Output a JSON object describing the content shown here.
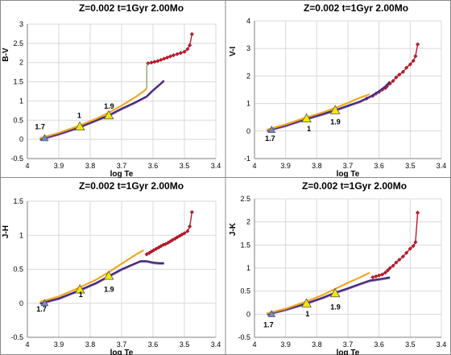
{
  "figure": {
    "title": "Z=0.002  t=1Gyr  2.00Mo"
  },
  "colors": {
    "red": "#c0192b",
    "dark": "#3a2a7a",
    "purple": "#7d3c98",
    "orange": "#f5a623",
    "yellow": "#f2e600",
    "blue": "#6a8fd0",
    "green": "#7d9a4c",
    "grid": "#d9d9d9"
  },
  "chart_data": [
    {
      "type": "line",
      "title": "Z=0.002  t=1Gyr  2.00Mo",
      "xlabel": "log Te",
      "ylabel": "B-V",
      "xlim": [
        4.0,
        3.4
      ],
      "ylim": [
        -0.5,
        3.0
      ],
      "xticks": [
        "4",
        "3.9",
        "3.8",
        "3.7",
        "3.6",
        "3.5",
        "3.4"
      ],
      "yticks": [
        "-0.5",
        "0",
        "0.5",
        "1",
        "1.5",
        "2",
        "2.5",
        "3"
      ],
      "grid": true,
      "series": [
        {
          "style": "red",
          "x": [
            3.616,
            3.605,
            3.595,
            3.585,
            3.575,
            3.565,
            3.555,
            3.545,
            3.535,
            3.523,
            3.512,
            3.5,
            3.49,
            3.483,
            3.476
          ],
          "y": [
            1.98,
            2.0,
            2.02,
            2.04,
            2.07,
            2.1,
            2.13,
            2.16,
            2.19,
            2.22,
            2.25,
            2.28,
            2.35,
            2.45,
            2.74
          ]
        },
        {
          "style": "dark",
          "x": [
            3.96,
            3.9,
            3.84,
            3.78,
            3.74,
            3.7,
            3.66,
            3.62,
            3.6,
            3.58,
            3.565
          ],
          "y": [
            0.0,
            0.14,
            0.3,
            0.5,
            0.63,
            0.8,
            0.95,
            1.12,
            1.28,
            1.42,
            1.53
          ]
        },
        {
          "style": "orange",
          "x": [
            3.96,
            3.9,
            3.84,
            3.78,
            3.74,
            3.7,
            3.66,
            3.63,
            3.62
          ],
          "y": [
            0.03,
            0.17,
            0.34,
            0.54,
            0.7,
            0.88,
            1.08,
            1.25,
            1.32
          ]
        },
        {
          "style": "green",
          "x": [
            3.62,
            3.62,
            3.616
          ],
          "y": [
            1.32,
            1.9,
            1.98
          ]
        }
      ],
      "markers": [
        {
          "shape": "triangle",
          "color": "yellow",
          "x": 3.833,
          "y": 0.33
        },
        {
          "shape": "triangle",
          "color": "yellow",
          "x": 3.741,
          "y": 0.62
        },
        {
          "shape": "triangle",
          "color": "blue",
          "x": 3.945,
          "y": 0.03
        }
      ],
      "annotations": [
        {
          "text": "1.7",
          "x": 3.96,
          "y": 0.27
        },
        {
          "text": "1",
          "x": 3.835,
          "y": 0.56
        },
        {
          "text": "1.9",
          "x": 3.74,
          "y": 0.8
        }
      ]
    },
    {
      "type": "line",
      "title": "Z=0.002  t=1Gyr  2.00Mo",
      "xlabel": "log Te",
      "ylabel": "V-I",
      "xlim": [
        4.0,
        3.4
      ],
      "ylim": [
        -1.0,
        4.0
      ],
      "xticks": [
        "4",
        "3.9",
        "3.8",
        "3.7",
        "3.6",
        "3.5",
        "3.4"
      ],
      "yticks": [
        "-1",
        "0",
        "1",
        "2",
        "3",
        "4"
      ],
      "grid": true,
      "series": [
        {
          "style": "red",
          "x": [
            3.64,
            3.62,
            3.61,
            3.6,
            3.59,
            3.58,
            3.575,
            3.565,
            3.555,
            3.545,
            3.535,
            3.523,
            3.512,
            3.5,
            3.49,
            3.483,
            3.476
          ],
          "y": [
            1.18,
            1.28,
            1.36,
            1.42,
            1.5,
            1.56,
            1.62,
            1.72,
            1.82,
            1.95,
            2.05,
            2.15,
            2.3,
            2.42,
            2.55,
            2.72,
            3.15
          ]
        },
        {
          "style": "dark",
          "x": [
            3.96,
            3.9,
            3.84,
            3.78,
            3.74,
            3.7,
            3.66,
            3.62,
            3.6,
            3.58,
            3.565
          ],
          "y": [
            0.02,
            0.2,
            0.42,
            0.62,
            0.76,
            0.92,
            1.08,
            1.3,
            1.45,
            1.62,
            1.8
          ]
        },
        {
          "style": "orange",
          "x": [
            3.96,
            3.9,
            3.84,
            3.78,
            3.74,
            3.7,
            3.66,
            3.63
          ],
          "y": [
            0.05,
            0.24,
            0.47,
            0.68,
            0.84,
            1.02,
            1.22,
            1.34
          ]
        }
      ],
      "markers": [
        {
          "shape": "triangle",
          "color": "yellow",
          "x": 3.833,
          "y": 0.45
        },
        {
          "shape": "triangle",
          "color": "yellow",
          "x": 3.741,
          "y": 0.75
        },
        {
          "shape": "triangle",
          "color": "blue",
          "x": 3.945,
          "y": 0.04
        }
      ],
      "annotations": [
        {
          "text": "1.7",
          "x": 3.95,
          "y": -0.35
        },
        {
          "text": "1",
          "x": 3.825,
          "y": 0.0
        },
        {
          "text": "1.9",
          "x": 3.74,
          "y": 0.25
        }
      ]
    },
    {
      "type": "line",
      "title": "Z=0.002  t=1Gyr  2.00Mo",
      "xlabel": "log Te",
      "ylabel": "J-H",
      "xlim": [
        4.0,
        3.4
      ],
      "ylim": [
        -0.5,
        1.5
      ],
      "xticks": [
        "4",
        "3.9",
        "3.8",
        "3.7",
        "3.6",
        "3.5",
        "3.4"
      ],
      "yticks": [
        "-0.5",
        "0",
        "0.5",
        "1",
        "1.5"
      ],
      "grid": true,
      "series": [
        {
          "style": "red",
          "x": [
            3.62,
            3.612,
            3.605,
            3.598,
            3.59,
            3.582,
            3.575,
            3.567,
            3.56,
            3.552,
            3.545,
            3.538,
            3.53,
            3.523,
            3.515,
            3.508,
            3.5,
            3.49,
            3.483,
            3.476
          ],
          "y": [
            0.72,
            0.74,
            0.76,
            0.78,
            0.8,
            0.82,
            0.84,
            0.86,
            0.87,
            0.89,
            0.91,
            0.93,
            0.95,
            0.97,
            0.99,
            1.01,
            1.03,
            1.06,
            1.13,
            1.34
          ]
        },
        {
          "style": "dark",
          "x": [
            3.96,
            3.9,
            3.84,
            3.78,
            3.74,
            3.7,
            3.66,
            3.64,
            3.62,
            3.6,
            3.58,
            3.565
          ],
          "y": [
            0.0,
            0.07,
            0.18,
            0.3,
            0.4,
            0.5,
            0.58,
            0.62,
            0.62,
            0.6,
            0.59,
            0.59
          ]
        },
        {
          "style": "orange",
          "x": [
            3.96,
            3.9,
            3.84,
            3.78,
            3.74,
            3.7,
            3.66,
            3.63
          ],
          "y": [
            0.02,
            0.1,
            0.22,
            0.35,
            0.46,
            0.58,
            0.7,
            0.78
          ]
        }
      ],
      "markers": [
        {
          "shape": "triangle",
          "color": "yellow",
          "x": 3.833,
          "y": 0.2
        },
        {
          "shape": "triangle",
          "color": "yellow",
          "x": 3.741,
          "y": 0.4
        },
        {
          "shape": "triangle",
          "color": "blue",
          "x": 3.945,
          "y": 0.0
        }
      ],
      "annotations": [
        {
          "text": "1.7",
          "x": 3.955,
          "y": -0.12
        },
        {
          "text": "1",
          "x": 3.83,
          "y": 0.09
        },
        {
          "text": "1.9",
          "x": 3.74,
          "y": 0.17
        }
      ]
    },
    {
      "type": "line",
      "title": "Z=0.002  t=1Gyr  2.00Mo",
      "xlabel": "log Te",
      "ylabel": "J-K",
      "xlim": [
        4.0,
        3.4
      ],
      "ylim": [
        -0.5,
        2.5
      ],
      "xticks": [
        "4",
        "3.9",
        "3.8",
        "3.7",
        "3.6",
        "3.5",
        "3.4"
      ],
      "yticks": [
        "-0.5",
        "0",
        "0.5",
        "1",
        "1.5",
        "2",
        "2.5"
      ],
      "grid": true,
      "series": [
        {
          "style": "red",
          "x": [
            3.62,
            3.61,
            3.6,
            3.59,
            3.58,
            3.572,
            3.565,
            3.555,
            3.545,
            3.535,
            3.523,
            3.512,
            3.5,
            3.49,
            3.483,
            3.476
          ],
          "y": [
            0.8,
            0.82,
            0.84,
            0.86,
            0.9,
            0.95,
            1.0,
            1.05,
            1.12,
            1.18,
            1.25,
            1.33,
            1.42,
            1.48,
            1.56,
            2.2
          ]
        },
        {
          "style": "dark",
          "x": [
            3.96,
            3.9,
            3.84,
            3.78,
            3.74,
            3.7,
            3.66,
            3.63,
            3.6,
            3.58,
            3.565
          ],
          "y": [
            0.0,
            0.1,
            0.22,
            0.36,
            0.47,
            0.56,
            0.66,
            0.73,
            0.76,
            0.78,
            0.8
          ]
        },
        {
          "style": "orange",
          "x": [
            3.96,
            3.9,
            3.84,
            3.78,
            3.74,
            3.7,
            3.66,
            3.63
          ],
          "y": [
            0.02,
            0.12,
            0.26,
            0.42,
            0.55,
            0.68,
            0.8,
            0.9
          ]
        }
      ],
      "markers": [
        {
          "shape": "triangle",
          "color": "yellow",
          "x": 3.833,
          "y": 0.23
        },
        {
          "shape": "triangle",
          "color": "yellow",
          "x": 3.741,
          "y": 0.45
        },
        {
          "shape": "triangle",
          "color": "blue",
          "x": 3.945,
          "y": 0.0
        }
      ],
      "annotations": [
        {
          "text": "1.7",
          "x": 3.955,
          "y": -0.28
        },
        {
          "text": "1",
          "x": 3.83,
          "y": -0.05
        },
        {
          "text": "1.9",
          "x": 3.74,
          "y": 0.1
        }
      ]
    }
  ]
}
